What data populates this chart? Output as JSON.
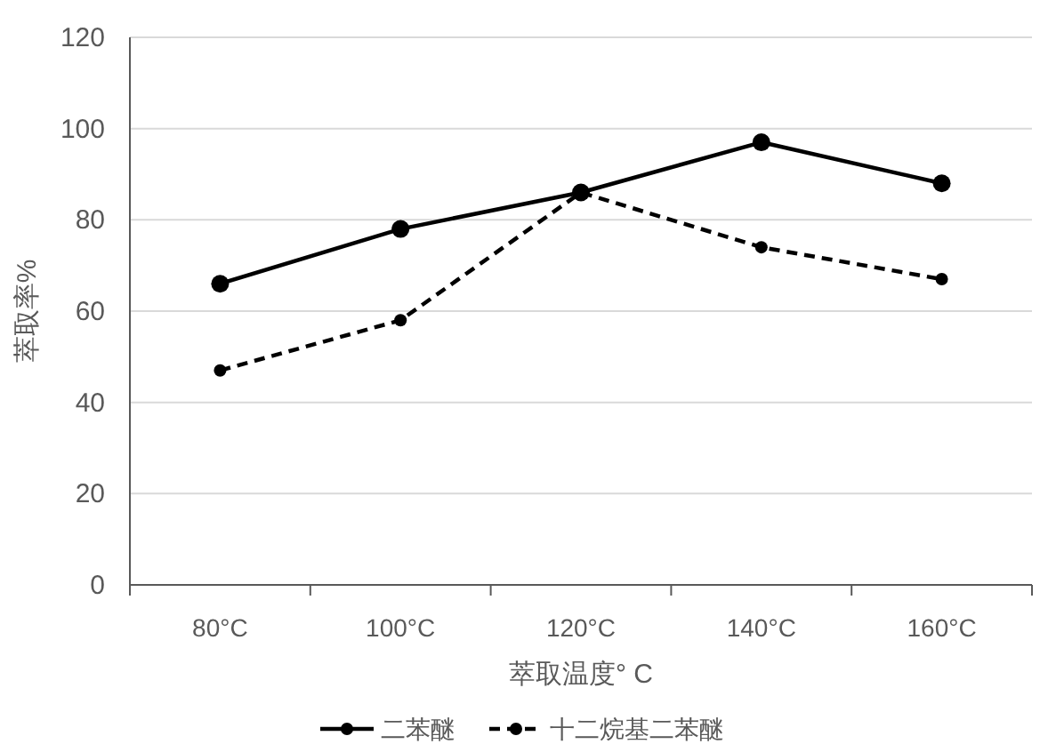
{
  "chart_data": {
    "type": "line",
    "xlabel": "萃取温度° C",
    "ylabel": "萃取率%",
    "categories": [
      "80°C",
      "100°C",
      "120°C",
      "140°C",
      "160°C"
    ],
    "series": [
      {
        "name": "二苯醚",
        "color": "#000000",
        "line_style": "solid",
        "values": [
          66,
          78,
          86,
          97,
          88
        ]
      },
      {
        "name": "十二烷基二苯醚",
        "color": "#000000",
        "line_style": "dashed",
        "values": [
          47,
          58,
          86,
          74,
          67
        ]
      }
    ],
    "ylim": [
      0,
      120
    ],
    "yticks": [
      0,
      20,
      40,
      60,
      80,
      100,
      120
    ],
    "grid": "y",
    "legend": "bottom",
    "marker": "circle"
  }
}
